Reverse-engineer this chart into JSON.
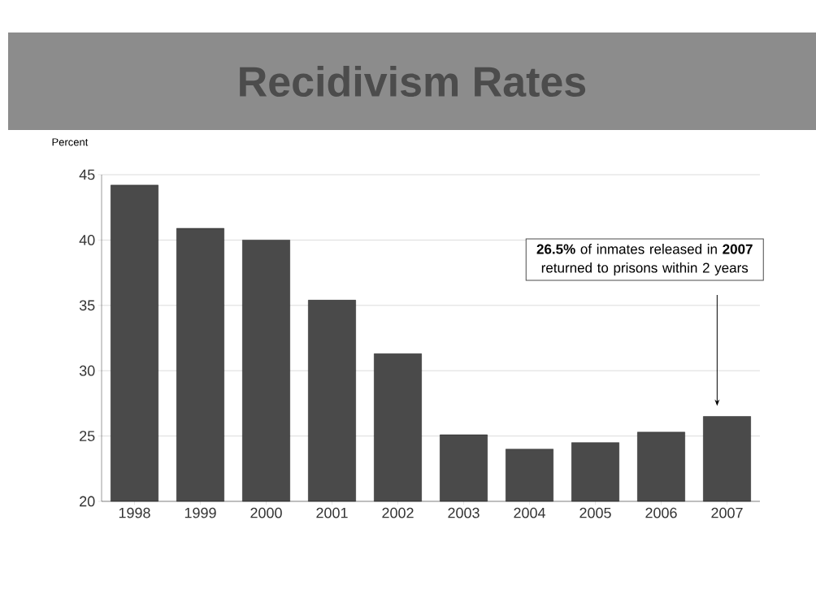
{
  "chart_data": {
    "type": "bar",
    "title": "Recidivism Rates",
    "ylabel": "Percent",
    "categories": [
      "1998",
      "1999",
      "2000",
      "2001",
      "2002",
      "2003",
      "2004",
      "2005",
      "2006",
      "2007"
    ],
    "values": [
      44.2,
      40.9,
      40.0,
      35.4,
      31.3,
      25.1,
      24.0,
      24.5,
      25.3,
      26.5
    ],
    "color": "#4a4a4a",
    "ylim": [
      20,
      45
    ],
    "yticks": [
      20,
      25,
      30,
      35,
      40,
      45
    ],
    "grid": "y",
    "annotations": [
      "**26.5%** of inmates released in **2007** returned to prisons within 2 years"
    ]
  }
}
